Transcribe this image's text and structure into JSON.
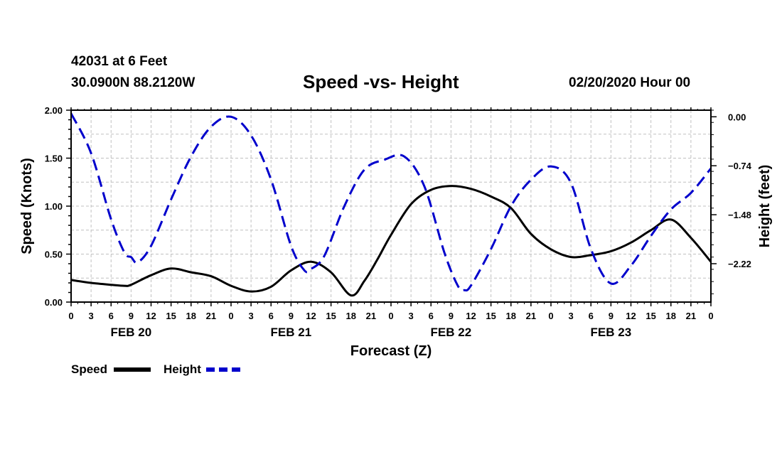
{
  "header": {
    "station": "42031 at 6 Feet",
    "coords": "30.0900N 88.2120W",
    "title": "Speed -vs- Height",
    "date": "02/20/2020 Hour 00"
  },
  "colors": {
    "speed": "#000000",
    "height": "#0000cc",
    "grid": "#c0c0c0"
  },
  "chart_data": {
    "type": "line",
    "title": "Speed -vs- Height",
    "xlabel": "Forecast (Z)",
    "ylabel": "Speed (Knots)",
    "y2label": "Height (feet)",
    "xlim": [
      0,
      96
    ],
    "ylim": [
      0,
      2.0
    ],
    "y2lim": [
      -2.8,
      0.1
    ],
    "y_ticks": [
      "0.00",
      "0.50",
      "1.00",
      "1.50",
      "2.00"
    ],
    "y_tick_values": [
      0,
      0.5,
      1.0,
      1.5,
      2.0
    ],
    "y2_ticks": [
      "0.00",
      "−0.74",
      "−1.48",
      "−2.22"
    ],
    "y2_tick_values": [
      0,
      -0.74,
      -1.48,
      -2.22
    ],
    "x_tick_labels": [
      "0",
      "3",
      "6",
      "9",
      "12",
      "15",
      "18",
      "21",
      "0",
      "3",
      "6",
      "9",
      "12",
      "15",
      "18",
      "21",
      "0",
      "3",
      "6",
      "9",
      "12",
      "15",
      "18",
      "21",
      "0",
      "3",
      "6",
      "9",
      "12",
      "15",
      "18",
      "21",
      "0"
    ],
    "day_labels": [
      {
        "label": "FEB 20",
        "hour": 9
      },
      {
        "label": "FEB 21",
        "hour": 33
      },
      {
        "label": "FEB 22",
        "hour": 57
      },
      {
        "label": "FEB 23",
        "hour": 81
      }
    ],
    "legend": {
      "speed": "Speed",
      "height": "Height"
    },
    "series": [
      {
        "name": "Speed",
        "style": "solid",
        "x": [
          0,
          3,
          6,
          8,
          9,
          12,
          15,
          18,
          21,
          24,
          27,
          30,
          33,
          36,
          39,
          42,
          44,
          46,
          48,
          51,
          54,
          57,
          60,
          63,
          66,
          69,
          72,
          75,
          78,
          81,
          84,
          87,
          90,
          93,
          96
        ],
        "values": [
          0.23,
          0.2,
          0.18,
          0.17,
          0.18,
          0.28,
          0.35,
          0.31,
          0.27,
          0.17,
          0.11,
          0.16,
          0.33,
          0.42,
          0.31,
          0.07,
          0.22,
          0.45,
          0.7,
          1.02,
          1.17,
          1.21,
          1.18,
          1.1,
          0.98,
          0.71,
          0.55,
          0.47,
          0.49,
          0.53,
          0.62,
          0.75,
          0.86,
          0.67,
          0.42
        ]
      },
      {
        "name": "Height",
        "style": "dashed",
        "x": [
          0,
          3,
          6,
          8,
          9,
          10,
          12,
          15,
          18,
          21,
          24,
          27,
          30,
          33,
          35,
          36,
          38,
          41,
          44,
          47,
          50,
          53,
          56,
          58,
          59,
          60,
          63,
          66,
          69,
          72,
          75,
          78,
          81,
          84,
          87,
          90,
          93,
          96
        ],
        "values": [
          0.05,
          -0.55,
          -1.55,
          -2.05,
          -2.12,
          -2.2,
          -1.95,
          -1.25,
          -0.6,
          -0.15,
          0.0,
          -0.28,
          -0.95,
          -1.95,
          -2.32,
          -2.3,
          -2.1,
          -1.35,
          -0.8,
          -0.65,
          -0.6,
          -1.05,
          -2.05,
          -2.55,
          -2.62,
          -2.55,
          -2.0,
          -1.35,
          -0.95,
          -0.75,
          -1.0,
          -2.0,
          -2.52,
          -2.25,
          -1.8,
          -1.4,
          -1.15,
          -0.78
        ]
      }
    ]
  }
}
